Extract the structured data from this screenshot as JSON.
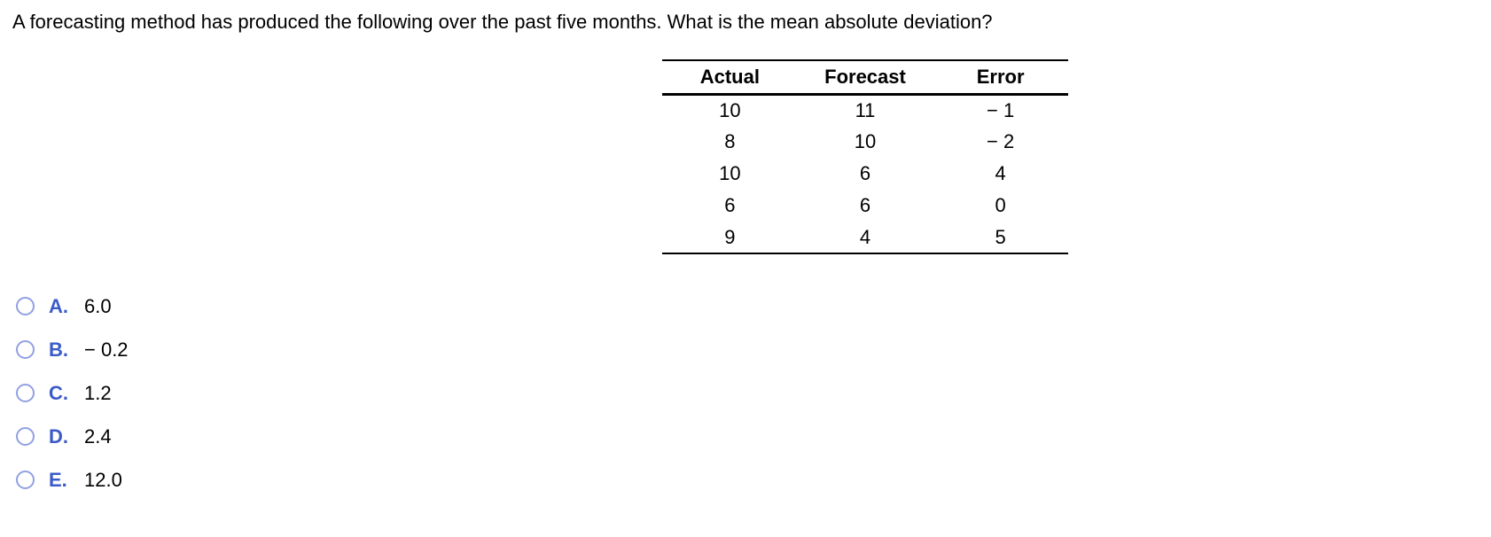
{
  "question": {
    "text": "A forecasting method has produced the following over the past five months. What is the mean absolute deviation?"
  },
  "table": {
    "columns": [
      "Actual",
      "Forecast",
      "Error"
    ],
    "rows": [
      [
        "10",
        "11",
        "− 1"
      ],
      [
        "8",
        "10",
        "− 2"
      ],
      [
        "10",
        "6",
        "4"
      ],
      [
        "6",
        "6",
        "0"
      ],
      [
        "9",
        "4",
        "5"
      ]
    ]
  },
  "options": [
    {
      "letter": "A.",
      "value": "6.0",
      "selected": false
    },
    {
      "letter": "B.",
      "value": "− 0.2",
      "selected": false
    },
    {
      "letter": "C.",
      "value": "1.2",
      "selected": false
    },
    {
      "letter": "D.",
      "value": "2.4",
      "selected": false
    },
    {
      "letter": "E.",
      "value": "12.0",
      "selected": false
    }
  ],
  "colors": {
    "background": "#ffffff",
    "text": "#000000",
    "option_letter_blue": "#3b5bc9",
    "radio_ring": "#91a0e2",
    "table_rule": "#000000"
  }
}
